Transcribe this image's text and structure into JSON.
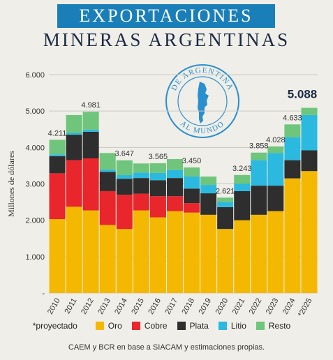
{
  "header": {
    "title": "EXPORTACIONES",
    "subtitle": "MINERAS ARGENTINAS"
  },
  "seal": {
    "text_top": "DE ARGENTINA",
    "text_bottom": "AL MUNDO",
    "color": "#2a8fcf"
  },
  "legend": {
    "note": "*proyectado"
  },
  "source": "CAEM y BCR en base a SIACAM y estimaciones propias.",
  "chart_data": {
    "type": "bar",
    "stacked": true,
    "ylabel": "Millones de dólares",
    "ylim": [
      0,
      6000
    ],
    "yticks": [
      0,
      1000,
      2000,
      3000,
      4000,
      5000,
      6000
    ],
    "ytick_labels": [
      "-",
      "1.000",
      "2.000",
      "3.000",
      "4.000",
      "5.000",
      "6.000"
    ],
    "grid": true,
    "legend_position": "bottom",
    "categories": [
      "2010",
      "2011",
      "2012",
      "2013",
      "2014",
      "2015",
      "2016",
      "2017",
      "2018",
      "2019",
      "2020",
      "2021",
      "2022",
      "2023",
      "2024",
      "*2025"
    ],
    "series": [
      {
        "name": "Oro",
        "color": "#f5b800",
        "values": [
          2030,
          2370,
          2270,
          1870,
          1760,
          2270,
          2080,
          2250,
          2210,
          2150,
          1760,
          2000,
          2150,
          2250,
          3150,
          3350
        ]
      },
      {
        "name": "Cobre",
        "color": "#e8262b",
        "values": [
          1260,
          1280,
          1430,
          930,
          940,
          460,
          580,
          410,
          260,
          0,
          0,
          0,
          0,
          0,
          0,
          0
        ]
      },
      {
        "name": "Plata",
        "color": "#2e2e2e",
        "values": [
          470,
          700,
          730,
          530,
          440,
          430,
          440,
          500,
          400,
          590,
          600,
          800,
          800,
          700,
          500,
          570
        ]
      },
      {
        "name": "Litio",
        "color": "#2bb9df",
        "values": [
          50,
          50,
          60,
          60,
          100,
          150,
          200,
          220,
          330,
          230,
          140,
          200,
          700,
          900,
          630,
          970
        ]
      },
      {
        "name": "Resto",
        "color": "#6fc57c",
        "values": [
          401,
          490,
          491,
          457,
          407,
          250,
          265,
          300,
          250,
          230,
          121,
          243,
          208,
          178,
          353,
          198
        ]
      }
    ],
    "totals": [
      {
        "index": 0,
        "label": "4.211"
      },
      {
        "index": 2,
        "label": "4.981"
      },
      {
        "index": 4,
        "label": "3.647"
      },
      {
        "index": 6,
        "label": "3.565"
      },
      {
        "index": 8,
        "label": "3.450"
      },
      {
        "index": 10,
        "label": "2.621"
      },
      {
        "index": 11,
        "label": "3.243"
      },
      {
        "index": 12,
        "label": "3.858"
      },
      {
        "index": 13,
        "label": "4.028"
      },
      {
        "index": 14,
        "label": "4.633"
      },
      {
        "index": 15,
        "label": "5.088",
        "emphasis": true
      }
    ]
  }
}
